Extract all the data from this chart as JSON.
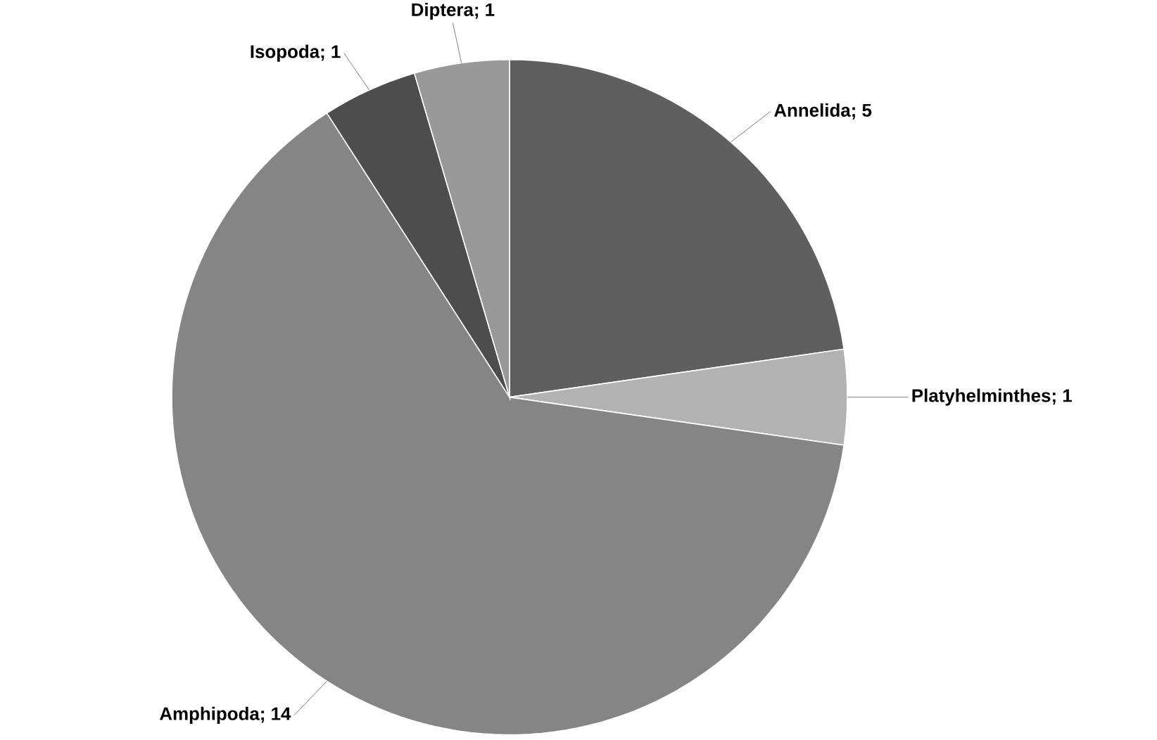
{
  "chart_data": {
    "type": "pie",
    "categories": [
      "Annelida; 5",
      "Platyhelminthes; 1",
      "Amphipoda; 14",
      "Isopoda; 1",
      "Diptera; 1"
    ],
    "values": [
      5,
      1,
      14,
      1,
      1
    ],
    "colors": [
      "#5f5f5f",
      "#b2b2b2",
      "#858585",
      "#4d4d4d",
      "#999999"
    ]
  }
}
